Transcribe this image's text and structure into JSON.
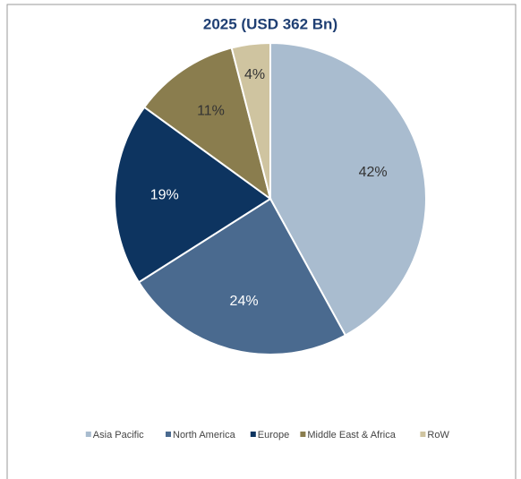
{
  "chart_data": {
    "type": "pie",
    "title": "2025 (USD 362 Bn)",
    "categories": [
      "Asia Pacific",
      "North America",
      "Europe",
      "Middle East & Africa",
      "RoW"
    ],
    "values": [
      42,
      24,
      19,
      11,
      4
    ],
    "value_labels": [
      "42%",
      "24%",
      "19%",
      "11%",
      "4%"
    ],
    "colors": [
      "#a9bccf",
      "#4a6a8f",
      "#0d3460",
      "#8a7d4e",
      "#cfc4a0"
    ],
    "legend": "bottom"
  }
}
